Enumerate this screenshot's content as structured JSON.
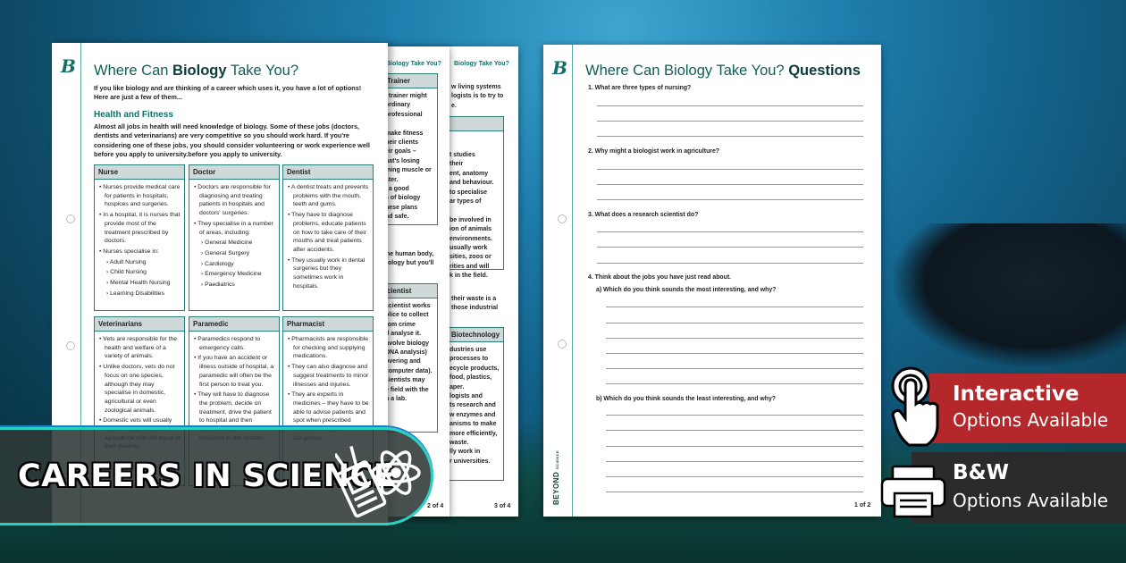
{
  "logo_letter": "B",
  "page1": {
    "title_pre": "Where Can ",
    "title_bold": "Biology",
    "title_post": " Take You?",
    "intro": "If you like biology and are thinking of a career which uses it, you have a lot of options! Here are just a few of them...",
    "section": "Health and Fitness",
    "paragraph": "Almost all jobs in health will need knowledge of biology. Some of these jobs (doctors, dentists and veterinarians) are very competitive so you should work hard. If you're considering one of these jobs, you should consider volunteering or work experience well before you apply to university.before you apply to university.",
    "cards": [
      {
        "title": "Nurse",
        "bullets": [
          {
            "text": "Nurses provide medical care for patients in hospitals, hospices and surgeries."
          },
          {
            "text": "In a hospital, it is nurses that provide most of the treatment prescribed by doctors."
          },
          {
            "text": "Nurses specialise in:",
            "sub": [
              "Adult Nursing",
              "Child Nursing",
              "Mental Health Nursing",
              "Learning Disabilities"
            ]
          }
        ]
      },
      {
        "title": "Doctor",
        "bullets": [
          {
            "text": "Doctors are responsible for diagnosing and treating patients in hospitals and doctors' surgeries."
          },
          {
            "text": "They specialise in a number of areas, including:",
            "sub": [
              "General Medicine",
              "General Surgery",
              "Cardiology",
              "Emergency Medicine",
              "Paediatrics"
            ]
          }
        ]
      },
      {
        "title": "Dentist",
        "bullets": [
          {
            "text": "A dentist treats and prevents problems with the mouth, teeth and gums."
          },
          {
            "text": "They have to diagnose problems, educate patients on how to take care of their mouths and treat patients after accidents."
          },
          {
            "text": "They usually work in dental surgeries but they sometimes work in hospitals."
          }
        ]
      },
      {
        "title": "Veterinarians",
        "bullets": [
          {
            "text": "Vets are responsible for the health and welfare of a variety of animals."
          },
          {
            "text": "Unlike doctors, vets do not focus on one species, although they may specialise in domestic, agricultural or even zoological animals."
          },
          {
            "text": "Domestic vets will usually work in surgeries, while agricultural vets will travel to their patients."
          }
        ]
      },
      {
        "title": "Paramedic",
        "bullets": [
          {
            "text": "Paramedics respond to emergency calls."
          },
          {
            "text": "If you have an accident or illness outside of hospital, a paramedic will often be the first person to treat you."
          },
          {
            "text": "They will have to diagnose the problem, decide on treatment, drive the patient to hospital and then communicate their decisions to the doctors."
          }
        ]
      },
      {
        "title": "Pharmacist",
        "bullets": [
          {
            "text": "Pharmacists are responsible for checking and supplying medications."
          },
          {
            "text": "They can also diagnose and suggest treatments to minor illnesses and injuries."
          },
          {
            "text": "They are experts in medicines – they have to be able to advise patients and spot when prescribed medicines may be dangerous."
          }
        ]
      }
    ]
  },
  "page2": {
    "header": "Biology Take You?",
    "box1_title": "Trainer",
    "box1_lines": [
      "l trainer might",
      "ordinary",
      "professional",
      "",
      "make fitness",
      "heir clients",
      "eir goals –",
      "hat's losing",
      "ining muscle or",
      "ster.",
      "l a good",
      "s of biology",
      "hese plans",
      "nd safe."
    ],
    "mid_lines": [
      "he human body,",
      "iology but you'll"
    ],
    "box2_title": "cientist",
    "box2_lines": [
      "scientist works",
      "olice to collect",
      "rom crime",
      "d analyse it.",
      "nvolve biology",
      "DNA analysis)",
      "overing and",
      "computer data).",
      "cientists may",
      "e field with the",
      "n a lab."
    ],
    "page_number": "2 of 4"
  },
  "page3": {
    "header": "Biology Take You?",
    "top_lines": [
      "w living systems",
      "logists is to try to",
      "e."
    ],
    "box1_title": "",
    "box1_lines": [
      "t studies",
      "their",
      "ent, anatomy",
      "and behaviour.",
      "to specialise",
      "ar types of",
      "",
      "be involved in",
      "ion of animals",
      "environments.",
      "usually work",
      "sities, zoos or",
      "rities and will",
      "k in the field."
    ],
    "mid_lines": [
      "their waste is a",
      "those industrial"
    ],
    "box2_title": "Biotechnology",
    "box2_lines": [
      "dustries use",
      "processes to",
      "ecycle products,",
      "food, plastics,",
      "aper.",
      "logists and",
      "ts research and",
      "w enzymes and",
      "anisms to make",
      "more efficiently,",
      "waste.",
      "lly work in",
      "r universities."
    ],
    "page_number": "3 of 4"
  },
  "questions": {
    "title_main": "Where Can Biology Take You? ",
    "title_bold": "Questions",
    "q1": "1.  What are three types of nursing?",
    "q2": "2.  Why might a biologist work in agriculture?",
    "q3": "3.  What does a research scientist do?",
    "q4": "4.  Think about the jobs you have just read about.",
    "q4a": "a)  Which do you think sounds the most interesting, and why?",
    "q4b": "b)  Which do you think sounds the least interesting, and why?",
    "brand": "BEYOND",
    "brand_sub": "SCIENCE",
    "page_number": "1 of 2"
  },
  "banner": {
    "text": "CAREERS IN SCIENCE",
    "icon": "id-badge-atom-icon"
  },
  "badges": {
    "interactive_title": "Interactive",
    "interactive_sub": "Options Available",
    "interactive_icon": "touch-hand-icon",
    "interactive_color": "#b4282c",
    "bw_title": "B&W",
    "bw_sub": "Options Available",
    "bw_icon": "printer-icon",
    "bw_color": "#2b2b2b"
  },
  "colors": {
    "accent": "#137067",
    "border": "#2b7e78",
    "banner_border": "#2ad0c0"
  }
}
